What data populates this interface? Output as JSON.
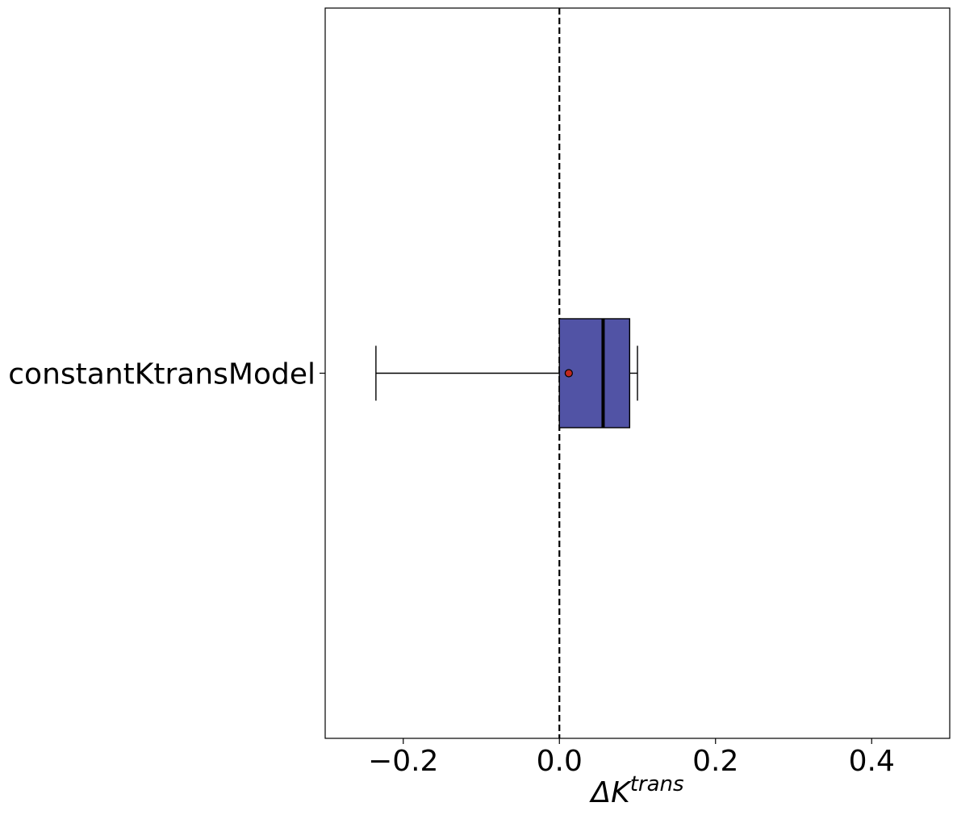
{
  "chart_data": {
    "type": "boxplot",
    "orientation": "horizontal",
    "categories": [
      "constantKtransModel"
    ],
    "boxes": [
      {
        "label": "constantKtransModel",
        "whisker_low": -0.235,
        "q1": 0.0,
        "median": 0.056,
        "q3": 0.09,
        "whisker_high": 0.1,
        "mean": 0.012
      }
    ],
    "xlim": [
      -0.3,
      0.5
    ],
    "xticks": [
      -0.2,
      0.0,
      0.2,
      0.4
    ],
    "xtick_labels": [
      "−0.2",
      "0.0",
      "0.2",
      "0.4"
    ],
    "xlabel_main": "ΔK",
    "xlabel_sup": "trans",
    "reference_line": {
      "x": 0.0,
      "style": "dashed"
    },
    "grid": false,
    "legend": "none",
    "colors": {
      "box_fill": "#5153a5",
      "box_edge": "#000000",
      "median": "#000000",
      "mean_marker": "#c0281e",
      "reference_line": "#000000"
    }
  }
}
